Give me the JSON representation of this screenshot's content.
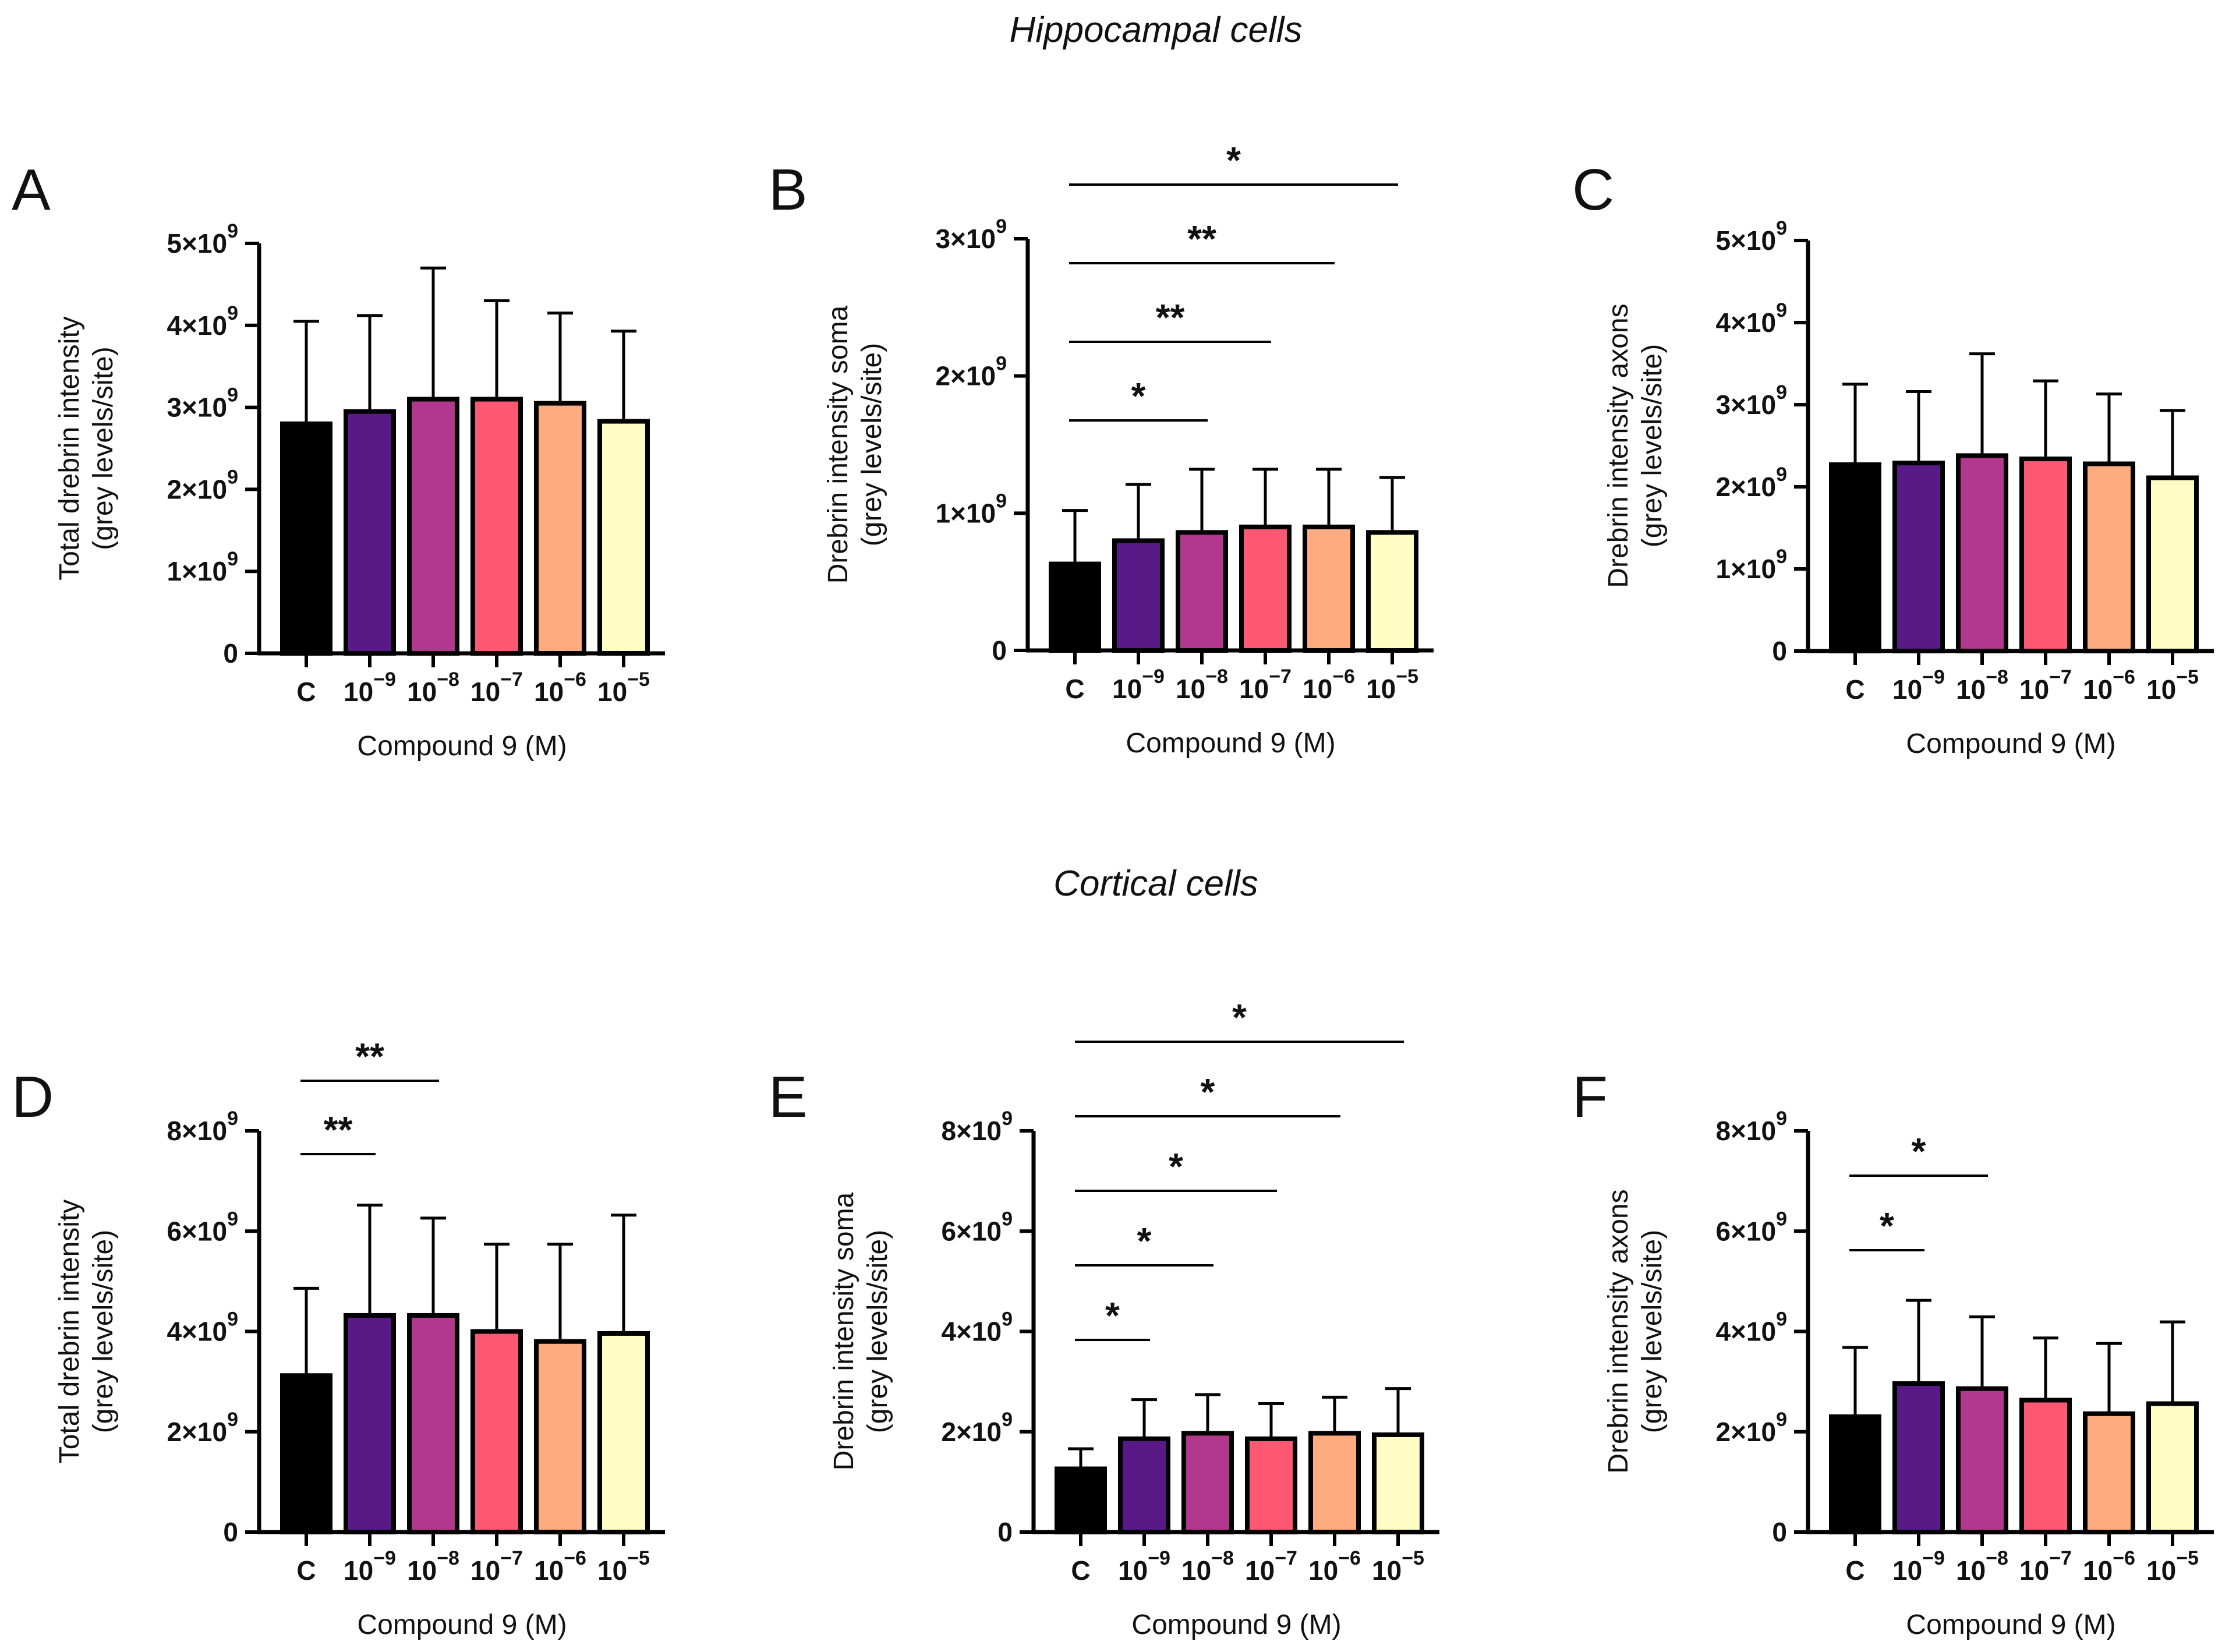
{
  "figure": {
    "section_titles": [
      "Hippocampal cells",
      "Cortical cells"
    ]
  },
  "colors": [
    "#000000",
    "#591a87",
    "#b2388e",
    "#ff5872",
    "#feab7f",
    "#fdfdc4"
  ],
  "chart_data": [
    {
      "panel": "A",
      "type": "bar",
      "section": "Hippocampal cells",
      "categories": [
        "C",
        "10−9",
        "10−8",
        "10−7",
        "10−6",
        "10−5"
      ],
      "values": [
        2.8,
        2.95,
        3.1,
        3.1,
        3.05,
        2.83
      ],
      "errors": [
        1.25,
        1.17,
        1.6,
        1.2,
        1.1,
        1.1
      ],
      "ylim": [
        0,
        5
      ],
      "yticks": [
        0,
        1,
        2,
        3,
        4,
        5
      ],
      "ytick_labels": [
        "0",
        "1×10",
        "2×10",
        "3×10",
        "4×10",
        "5×10"
      ],
      "ytick_exponent": "9",
      "ylabel": [
        "Total drebrin intensity",
        "(grey levels/site)"
      ],
      "xlabel": "Compound 9 (M)",
      "significance": []
    },
    {
      "panel": "B",
      "type": "bar",
      "section": "Hippocampal cells",
      "categories": [
        "C",
        "10−9",
        "10−8",
        "10−7",
        "10−6",
        "10−5"
      ],
      "values": [
        0.63,
        0.8,
        0.86,
        0.9,
        0.9,
        0.86
      ],
      "errors": [
        0.39,
        0.41,
        0.46,
        0.42,
        0.42,
        0.4
      ],
      "ylim": [
        0,
        3
      ],
      "yticks": [
        0,
        1,
        2,
        3
      ],
      "ytick_labels": [
        "0",
        "1×10",
        "2×10",
        "3×10"
      ],
      "ytick_exponent": "9",
      "ylabel": [
        "Drebrin intensity soma",
        "(grey levels/site)"
      ],
      "xlabel": "Compound 9 (M)",
      "significance": [
        {
          "from": 0,
          "to": 2,
          "label": "*"
        },
        {
          "from": 0,
          "to": 3,
          "label": "**"
        },
        {
          "from": 0,
          "to": 4,
          "label": "**"
        },
        {
          "from": 0,
          "to": 5,
          "label": "*"
        }
      ]
    },
    {
      "panel": "C",
      "type": "bar",
      "section": "Hippocampal cells",
      "categories": [
        "C",
        "10−9",
        "10−8",
        "10−7",
        "10−6",
        "10−5"
      ],
      "values": [
        2.27,
        2.29,
        2.38,
        2.34,
        2.28,
        2.11
      ],
      "errors": [
        0.98,
        0.87,
        1.24,
        0.95,
        0.85,
        0.82
      ],
      "ylim": [
        0,
        5
      ],
      "yticks": [
        0,
        1,
        2,
        3,
        4,
        5
      ],
      "ytick_labels": [
        "0",
        "1×10",
        "2×10",
        "3×10",
        "4×10",
        "5×10"
      ],
      "ytick_exponent": "9",
      "ylabel": [
        "Drebrin intensity axons",
        "(grey levels/site)"
      ],
      "xlabel": "Compound 9 (M)",
      "significance": []
    },
    {
      "panel": "D",
      "type": "bar",
      "section": "Cortical cells",
      "categories": [
        "C",
        "10−9",
        "10−8",
        "10−7",
        "10−6",
        "10−5"
      ],
      "values": [
        3.12,
        4.32,
        4.32,
        4.0,
        3.8,
        3.96
      ],
      "errors": [
        1.74,
        2.2,
        1.94,
        1.74,
        1.94,
        2.36
      ],
      "ylim": [
        0,
        8
      ],
      "yticks": [
        0,
        2,
        4,
        6,
        8
      ],
      "ytick_labels": [
        "0",
        "2×10",
        "4×10",
        "6×10",
        "8×10"
      ],
      "ytick_exponent": "9",
      "ylabel": [
        "Total drebrin intensity",
        "(grey levels/site)"
      ],
      "xlabel": "Compound 9 (M)",
      "significance": [
        {
          "from": 0,
          "to": 1,
          "label": "**"
        },
        {
          "from": 0,
          "to": 2,
          "label": "**"
        }
      ]
    },
    {
      "panel": "E",
      "type": "bar",
      "section": "Cortical cells",
      "categories": [
        "C",
        "10−9",
        "10−8",
        "10−7",
        "10−6",
        "10−5"
      ],
      "values": [
        1.26,
        1.86,
        1.97,
        1.86,
        1.97,
        1.94
      ],
      "errors": [
        0.4,
        0.78,
        0.77,
        0.7,
        0.72,
        0.92
      ],
      "ylim": [
        0,
        8
      ],
      "yticks": [
        0,
        2,
        4,
        6,
        8
      ],
      "ytick_labels": [
        "0",
        "2×10",
        "4×10",
        "6×10",
        "8×10"
      ],
      "ytick_exponent": "9",
      "ylabel": [
        "Drebrin intensity soma",
        "(grey levels/site)"
      ],
      "xlabel": "Compound 9 (M)",
      "significance": [
        {
          "from": 0,
          "to": 1,
          "label": "*"
        },
        {
          "from": 0,
          "to": 2,
          "label": "*"
        },
        {
          "from": 0,
          "to": 3,
          "label": "*"
        },
        {
          "from": 0,
          "to": 4,
          "label": "*"
        },
        {
          "from": 0,
          "to": 5,
          "label": "*"
        }
      ]
    },
    {
      "panel": "F",
      "type": "bar",
      "section": "Cortical cells",
      "categories": [
        "C",
        "10−9",
        "10−8",
        "10−7",
        "10−6",
        "10−5"
      ],
      "values": [
        2.3,
        2.96,
        2.86,
        2.63,
        2.36,
        2.56
      ],
      "errors": [
        1.38,
        1.66,
        1.43,
        1.24,
        1.4,
        1.63
      ],
      "ylim": [
        0,
        8
      ],
      "yticks": [
        0,
        2,
        4,
        6,
        8
      ],
      "ytick_labels": [
        "0",
        "2×10",
        "4×10",
        "6×10",
        "8×10"
      ],
      "ytick_exponent": "9",
      "ylabel": [
        "Drebrin intensity axons",
        "(grey levels/site)"
      ],
      "xlabel": "Compound 9 (M)",
      "significance": [
        {
          "from": 0,
          "to": 1,
          "label": "*"
        },
        {
          "from": 0,
          "to": 2,
          "label": "*"
        }
      ]
    }
  ]
}
